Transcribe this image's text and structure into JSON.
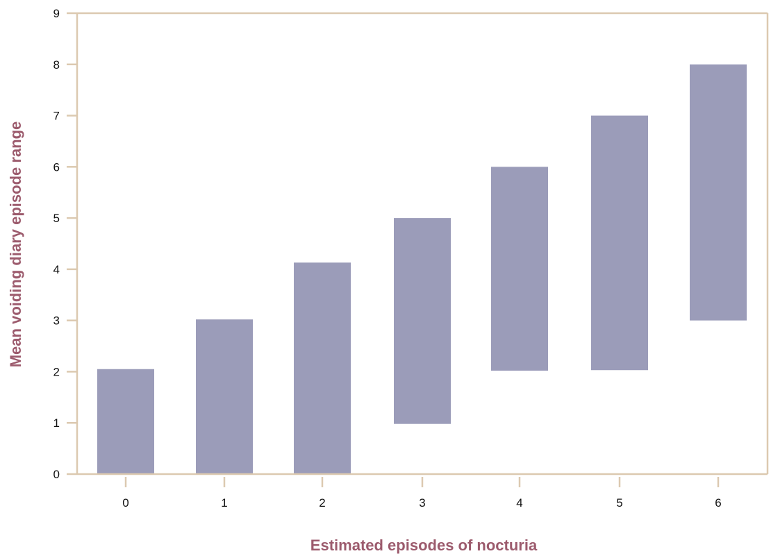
{
  "chart_data": {
    "type": "bar",
    "subtype": "floating-range",
    "title": "",
    "xlabel": "Estimated episodes of nocturia",
    "ylabel": "Mean voiding diary episode range",
    "categories": [
      "0",
      "1",
      "2",
      "3",
      "4",
      "5",
      "6"
    ],
    "series": [
      {
        "ranges": [
          [
            0,
            2.05
          ],
          [
            0,
            3.02
          ],
          [
            0,
            4.13
          ],
          [
            0.98,
            5.0
          ],
          [
            2.02,
            6.0
          ],
          [
            2.03,
            7.0
          ],
          [
            3.0,
            8.0
          ]
        ]
      }
    ],
    "yticks": [
      "0",
      "1",
      "2",
      "3",
      "4",
      "5",
      "6",
      "7",
      "8",
      "9"
    ],
    "ylim": [
      0,
      9
    ],
    "grid": false,
    "legend": "none",
    "colors": {
      "bar": "#9b9cb9",
      "axis": "#dcc9b0",
      "axis_title": "#9c5b6d",
      "tick_text": "#111111"
    }
  }
}
